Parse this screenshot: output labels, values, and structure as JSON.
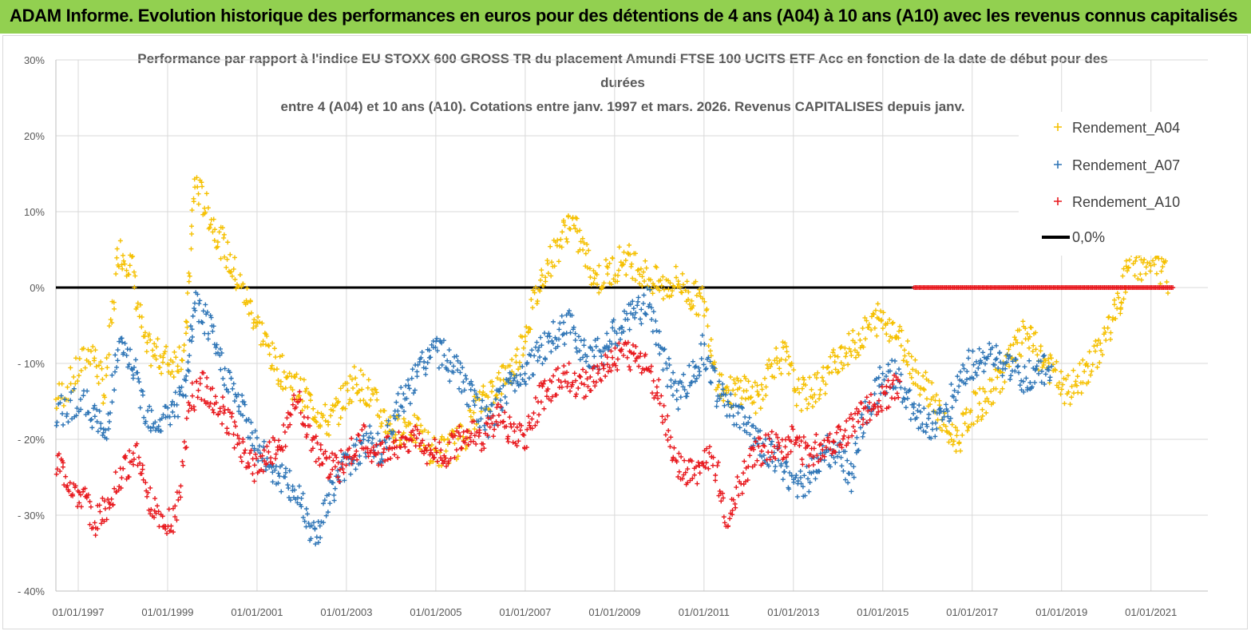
{
  "banner": {
    "title": "ADAM Informe. Evolution historique des performances en euros pour des détentions de 4 ans (A04) à 10 ans (A10) avec les revenus connus capitalisés",
    "background": "#92d050"
  },
  "chart_data": {
    "type": "scatter",
    "title_lines": [
      "Performance par rapport à l'indice EU STOXX 600 GROSS TR  du placement Amundi FTSE 100 UCITS ETF Acc en fonction de la date de début pour des",
      "durées",
      "entre 4 (A04) et 10 ans (A10). Cotations entre janv. 1997 et mars. 2026. Revenus CAPITALISES depuis janv."
    ],
    "xlabel": "",
    "ylabel": "",
    "x_range": [
      1997.0,
      2022.0
    ],
    "ylim": [
      -40,
      30
    ],
    "y_ticks": [
      -40,
      -30,
      -20,
      -10,
      0,
      10,
      20,
      30
    ],
    "y_tick_labels": [
      "- 40%",
      "- 30%",
      "- 20%",
      "- 10%",
      "0%",
      "10%",
      "20%",
      "30%"
    ],
    "x_ticks": [
      1997,
      1999,
      2001,
      2003,
      2005,
      2007,
      2009,
      2011,
      2013,
      2015,
      2017,
      2019,
      2021
    ],
    "x_tick_labels": [
      "01/01/1997",
      "01/01/1999",
      "01/01/2001",
      "01/01/2003",
      "01/01/2005",
      "01/01/2007",
      "01/01/2009",
      "01/01/2011",
      "01/01/2013",
      "01/01/2015",
      "01/01/2017",
      "01/01/2019",
      "01/01/2021"
    ],
    "grid": true,
    "legend_position": "top-right",
    "reference_line": {
      "name": "0,0%",
      "value": 0,
      "color": "#000000"
    },
    "series": [
      {
        "name": "Rendement_A04",
        "color": "#f5c000",
        "x": [
          1997.0,
          1997.4,
          1997.8,
          1998.1,
          1998.4,
          1998.7,
          1999.0,
          1999.3,
          1999.6,
          1999.9,
          2000.1,
          2000.4,
          2000.7,
          2001.0,
          2001.3,
          2001.6,
          2001.9,
          2002.2,
          2002.5,
          2002.8,
          2003.1,
          2003.4,
          2003.7,
          2004.0,
          2004.3,
          2004.6,
          2004.9,
          2005.2,
          2005.5,
          2005.8,
          2006.1,
          2006.4,
          2006.7,
          2007.0,
          2007.3,
          2007.6,
          2007.9,
          2008.2,
          2008.5,
          2008.8,
          2009.1,
          2009.4,
          2009.7,
          2010.0,
          2010.3,
          2010.6,
          2010.9,
          2011.2,
          2011.5,
          2011.8,
          2012.1,
          2012.4,
          2012.7,
          2013.0,
          2013.3,
          2013.6,
          2013.9,
          2014.2,
          2014.5,
          2014.8,
          2015.1,
          2015.4,
          2015.7,
          2016.0,
          2016.3,
          2016.6,
          2016.9,
          2017.2,
          2017.5,
          2017.8,
          2018.1,
          2018.4,
          2018.7,
          2019.0,
          2019.3,
          2019.6,
          2019.9,
          2020.2,
          2020.5,
          2020.8,
          2021.0,
          2021.3,
          2021.6,
          2021.9
        ],
        "values": [
          -15,
          -12,
          -8,
          -14,
          5,
          3,
          -8,
          -9,
          -10,
          -8,
          14,
          10,
          6,
          2,
          -2,
          -6,
          -10,
          -12,
          -14,
          -16,
          -18,
          -15,
          -12,
          -14,
          -17,
          -19,
          -18,
          -20,
          -22,
          -21,
          -20,
          -16,
          -14,
          -12,
          -10,
          -4,
          2,
          5,
          9,
          5,
          1,
          2,
          4,
          3,
          1,
          0,
          1,
          -1,
          -2,
          -12,
          -14,
          -13,
          -15,
          -10,
          -9,
          -14,
          -14,
          -12,
          -9,
          -8,
          -6,
          -4,
          -5,
          -8,
          -12,
          -14,
          -19,
          -20,
          -16,
          -15,
          -12,
          -9,
          -6,
          -9,
          -11,
          -14,
          -12,
          -10,
          -6,
          -2,
          3,
          3,
          3,
          1
        ],
        "spread": 2.2
      },
      {
        "name": "Rendement_A07",
        "color": "#2e75b6",
        "x": [
          1997.0,
          1997.4,
          1997.8,
          1998.1,
          1998.4,
          1998.7,
          1999.0,
          1999.3,
          1999.6,
          1999.9,
          2000.1,
          2000.4,
          2000.7,
          2001.0,
          2001.3,
          2001.6,
          2001.9,
          2002.2,
          2002.5,
          2002.8,
          2003.1,
          2003.4,
          2003.7,
          2004.0,
          2004.3,
          2004.6,
          2004.9,
          2005.2,
          2005.5,
          2005.8,
          2006.1,
          2006.4,
          2006.7,
          2007.0,
          2007.3,
          2007.6,
          2007.9,
          2008.2,
          2008.5,
          2008.8,
          2009.1,
          2009.4,
          2009.7,
          2010.0,
          2010.3,
          2010.6,
          2010.9,
          2011.2,
          2011.5,
          2011.8,
          2012.1,
          2012.4,
          2012.7,
          2013.0,
          2013.3,
          2013.6,
          2013.9,
          2014.2,
          2014.5,
          2014.8,
          2015.1,
          2015.4,
          2015.7,
          2016.0,
          2016.3,
          2016.6,
          2016.9,
          2017.2,
          2017.5,
          2017.8,
          2018.1,
          2018.4,
          2018.7,
          2019.0,
          2019.3
        ],
        "values": [
          -17,
          -15,
          -16,
          -20,
          -8,
          -10,
          -16,
          -18,
          -16,
          -14,
          -2,
          -5,
          -10,
          -14,
          -18,
          -22,
          -24,
          -26,
          -28,
          -33,
          -28,
          -24,
          -22,
          -20,
          -22,
          -16,
          -14,
          -10,
          -8,
          -10,
          -12,
          -16,
          -18,
          -14,
          -12,
          -10,
          -8,
          -6,
          -5,
          -8,
          -9,
          -7,
          -5,
          -3,
          -2,
          -10,
          -14,
          -12,
          -8,
          -14,
          -16,
          -18,
          -20,
          -22,
          -24,
          -26,
          -25,
          -21,
          -22,
          -25,
          -17,
          -13,
          -11,
          -14,
          -17,
          -18,
          -17,
          -12,
          -10,
          -9,
          -10,
          -11,
          -12,
          -11,
          -10
        ],
        "spread": 2.2
      },
      {
        "name": "Rendement_A10",
        "color": "#e8191e",
        "x": [
          1997.0,
          1997.3,
          1997.6,
          1997.9,
          1998.2,
          1998.5,
          1998.8,
          1999.1,
          1999.4,
          1999.7,
          2000.0,
          2000.3,
          2000.6,
          2000.9,
          2001.2,
          2001.5,
          2001.8,
          2002.1,
          2002.4,
          2002.7,
          2003.0,
          2003.3,
          2003.6,
          2003.9,
          2004.2,
          2004.5,
          2004.8,
          2005.1,
          2005.4,
          2005.7,
          2006.0,
          2006.3,
          2006.6,
          2006.9,
          2007.2,
          2007.5,
          2007.8,
          2008.1,
          2008.4,
          2008.7,
          2009.0,
          2009.3,
          2009.6,
          2009.9,
          2010.2,
          2010.5,
          2010.8,
          2011.1,
          2011.4,
          2011.7,
          2012.0,
          2012.3,
          2012.6,
          2012.9,
          2013.2,
          2013.5,
          2013.8,
          2014.1,
          2014.4,
          2014.7,
          2015.0,
          2015.3,
          2015.6,
          2015.9
        ],
        "values": [
          -23,
          -26,
          -28,
          -31,
          -28,
          -24,
          -22,
          -28,
          -31,
          -30,
          -15,
          -13,
          -15,
          -18,
          -22,
          -24,
          -22,
          -20,
          -14,
          -20,
          -23,
          -24,
          -22,
          -20,
          -22,
          -21,
          -20,
          -20,
          -22,
          -22,
          -20,
          -19,
          -20,
          -17,
          -19,
          -20,
          -15,
          -13,
          -11,
          -13,
          -12,
          -10,
          -9,
          -9,
          -10,
          -14,
          -22,
          -25,
          -24,
          -22,
          -30,
          -26,
          -22,
          -21,
          -21,
          -20,
          -22,
          -21,
          -20,
          -19,
          -17,
          -15,
          -14,
          -13
        ],
        "spread": 2.0
      }
    ],
    "flat_line": {
      "name": "Rendement_A10",
      "x_start": 2016.2,
      "x_end": 2022.0,
      "value": 0,
      "color": "#e8191e"
    }
  }
}
